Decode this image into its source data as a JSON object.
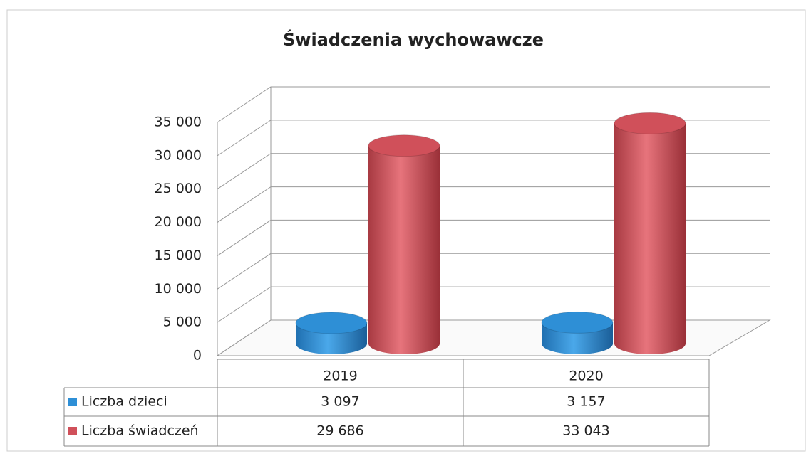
{
  "chart_data": {
    "type": "bar3d",
    "title": "Świadczenia wychowawcze",
    "categories": [
      "2019",
      "2020"
    ],
    "series": [
      {
        "name": "Liczba dzieci",
        "color": "#2e8fd6",
        "values": [
          3097,
          3157
        ],
        "value_labels": [
          "3 097",
          "3 157"
        ]
      },
      {
        "name": "Liczba świadczeń",
        "color": "#d0505a",
        "values": [
          29686,
          33043
        ],
        "value_labels": [
          "29 686",
          "33 043"
        ]
      }
    ],
    "ylim": [
      0,
      35000
    ],
    "yticks": [
      0,
      {
        "value": 5000,
        "label": "5 000"
      },
      {
        "value": 10000,
        "label": "10 000"
      },
      {
        "value": 15000,
        "label": "15 000"
      },
      {
        "value": 20000,
        "label": "20 000"
      },
      {
        "value": 25000,
        "label": "25 000"
      },
      {
        "value": 30000,
        "label": "30 000"
      },
      {
        "value": 35000,
        "label": "35 000"
      }
    ],
    "grid": true
  }
}
